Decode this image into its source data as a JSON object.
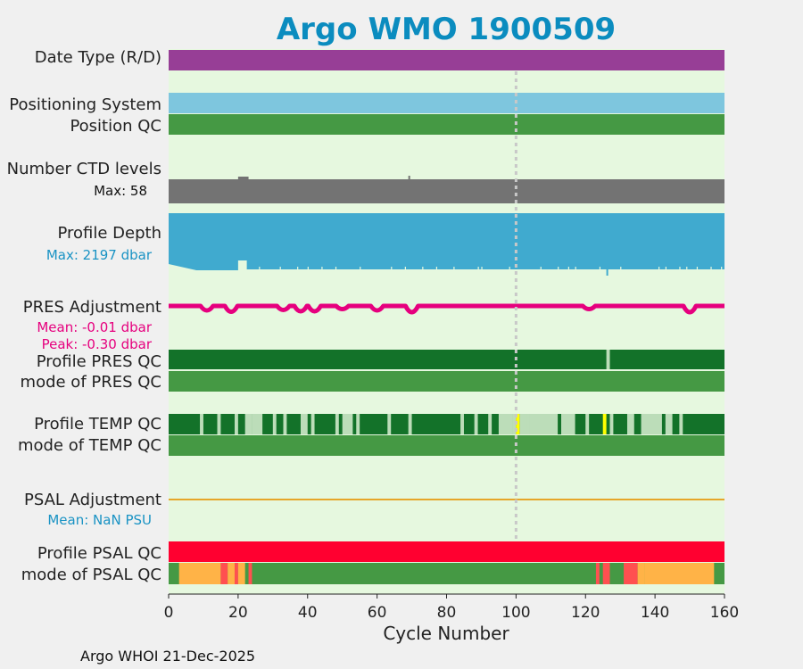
{
  "chart_data": {
    "type": "timeline",
    "title": "Argo WMO 1900509",
    "xlabel": "Cycle Number",
    "xlim": [
      0,
      160
    ],
    "xticks": [
      "0",
      "20",
      "40",
      "60",
      "80",
      "100",
      "120",
      "140",
      "160"
    ],
    "xtick_values": [
      0,
      20,
      40,
      60,
      80,
      100,
      120,
      140,
      160
    ],
    "marker_cycle": 100,
    "footer": "Argo WHOI 21-Dec-2025",
    "colors": {
      "title": "#0b8cbf",
      "background": "#e6f8df",
      "date_type": "#973e96",
      "positioning": "#7ec6de",
      "qc_good": "#459944",
      "qc_dark": "#137229",
      "qc_light": "#bcddb9",
      "qc_yellow": "#ffff00",
      "ctd_grey": "#737373",
      "depth_blue": "#40aacf",
      "pres_magenta": "#e6007e",
      "psal_line": "#e6a62a",
      "qc_red": "#ff0030",
      "qc_orange": "#ffb347",
      "qc_lightred": "#ff5050",
      "marker": "#c8c8c8",
      "mean_blue": "#1a93c4"
    },
    "labels": {
      "date_type": "Date Type (R/D)",
      "positioning_system": "Positioning System",
      "position_qc": "Position QC",
      "ctd_levels": "Number CTD levels",
      "ctd_max": "Max: 58",
      "profile_depth": "Profile Depth",
      "depth_max": "Max: 2197 dbar",
      "pres_adjustment": "PRES Adjustment",
      "pres_mean": "Mean: -0.01 dbar",
      "pres_peak": "Peak: -0.30 dbar",
      "profile_pres_qc": "Profile PRES QC",
      "mode_pres_qc": "mode of PRES QC",
      "profile_temp_qc": "Profile TEMP QC",
      "mode_temp_qc": "mode of TEMP QC",
      "psal_adjustment": "PSAL Adjustment",
      "psal_mean": "Mean:  NaN PSU",
      "profile_psal_qc": "Profile PSAL QC",
      "mode_psal_qc": "mode of PSAL QC"
    },
    "series": {
      "ctd_levels_max": 58,
      "depth_max_dbar": 2197,
      "pres_mean_dbar": -0.01,
      "pres_peak_dbar": -0.3,
      "pres_dips": [
        {
          "cycle": 11,
          "depth": 0.6
        },
        {
          "cycle": 18,
          "depth": 0.9
        },
        {
          "cycle": 33,
          "depth": 0.5
        },
        {
          "cycle": 38,
          "depth": 0.8
        },
        {
          "cycle": 42,
          "depth": 0.8
        },
        {
          "cycle": 50,
          "depth": 0.3
        },
        {
          "cycle": 60,
          "depth": 0.6
        },
        {
          "cycle": 70,
          "depth": 1.0
        },
        {
          "cycle": 121,
          "depth": 0.3
        },
        {
          "cycle": 150,
          "depth": 1.0
        }
      ],
      "ctd_low_segments": [
        [
          20,
          23
        ],
        [
          69,
          70
        ]
      ],
      "depth_shallow_segments": [
        [
          20,
          22.5
        ]
      ],
      "depth_notches": [
        26,
        32,
        37,
        40,
        44,
        48,
        55,
        64,
        68,
        73,
        77,
        82,
        89,
        90,
        98,
        107,
        112,
        115,
        117,
        124,
        130,
        141,
        143,
        147,
        149,
        152,
        156,
        159
      ],
      "depth_deep_notch": 126,
      "pres_qc_gaps": [
        126
      ],
      "temp_qc_light": [
        [
          9,
          10
        ],
        [
          14,
          15
        ],
        [
          19,
          20
        ],
        [
          22,
          24
        ],
        [
          41,
          42
        ],
        [
          48,
          49
        ],
        [
          54,
          55
        ],
        [
          69,
          70
        ],
        [
          88,
          89
        ],
        [
          92,
          93
        ],
        [
          95,
          99
        ],
        [
          103,
          104
        ],
        [
          108,
          109
        ],
        [
          120,
          121
        ],
        [
          127,
          128
        ],
        [
          132,
          134
        ],
        [
          140,
          142
        ],
        [
          143,
          145
        ]
      ],
      "temp_qc_mid": [
        [
          24,
          27
        ],
        [
          30,
          31
        ],
        [
          33,
          34
        ],
        [
          38,
          40
        ],
        [
          50,
          53
        ],
        [
          63,
          64
        ],
        [
          84,
          85
        ],
        [
          99,
          100
        ],
        [
          101,
          104
        ],
        [
          104,
          112
        ],
        [
          113,
          117
        ],
        [
          136,
          141
        ],
        [
          147,
          148
        ]
      ],
      "temp_qc_yellow": [
        [
          100,
          101
        ],
        [
          125,
          126
        ]
      ],
      "psal_mode_segments": [
        {
          "range": [
            3,
            15
          ],
          "color": "qc_orange"
        },
        {
          "range": [
            15,
            17
          ],
          "color": "qc_lightred"
        },
        {
          "range": [
            17,
            19
          ],
          "color": "qc_orange"
        },
        {
          "range": [
            19,
            20
          ],
          "color": "qc_lightred"
        },
        {
          "range": [
            20,
            22
          ],
          "color": "qc_orange"
        },
        {
          "range": [
            23,
            24
          ],
          "color": "qc_lightred"
        },
        {
          "range": [
            123,
            124
          ],
          "color": "qc_lightred"
        },
        {
          "range": [
            125,
            127
          ],
          "color": "qc_lightred"
        },
        {
          "range": [
            131,
            135
          ],
          "color": "qc_lightred"
        },
        {
          "range": [
            135,
            137
          ],
          "color": "qc_orange"
        },
        {
          "range": [
            137,
            157
          ],
          "color": "qc_orange"
        }
      ]
    }
  }
}
